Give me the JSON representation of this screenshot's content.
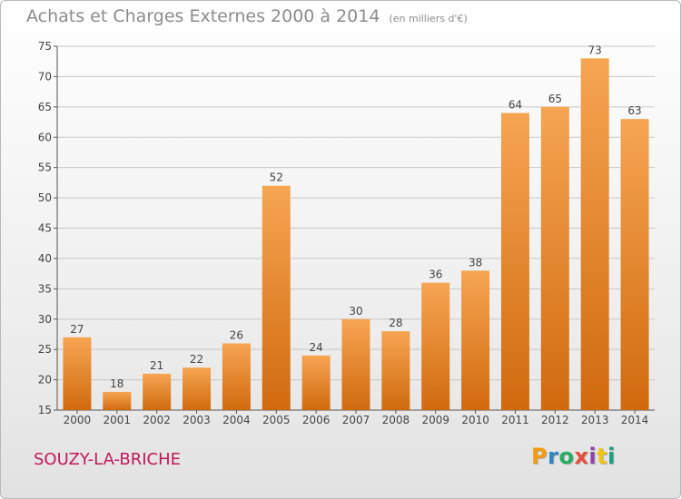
{
  "header": {
    "title": "Achats et Charges Externes 2000 à 2014",
    "unit_note": "(en milliers d'€)"
  },
  "footer": {
    "commune": "SOUZY-LA-BRICHE",
    "logo_text": "Proxiti",
    "logo_colors": [
      "#f39c12",
      "#2e86c1",
      "#27ae60",
      "#e74c3c",
      "#8e44ad",
      "#f1c40f",
      "#16a085"
    ]
  },
  "colors": {
    "bar_light": "#f6a552",
    "bar_dark": "#d06a0e",
    "grid": "#c8c8c8",
    "axis_text": "#444444",
    "title": "#8c8c8c",
    "commune": "#c2185b"
  },
  "chart_data": {
    "type": "bar",
    "categories": [
      "2000",
      "2001",
      "2002",
      "2003",
      "2004",
      "2005",
      "2006",
      "2007",
      "2008",
      "2009",
      "2010",
      "2011",
      "2012",
      "2013",
      "2014"
    ],
    "values": [
      27,
      18,
      21,
      22,
      26,
      52,
      24,
      30,
      28,
      36,
      38,
      64,
      65,
      73,
      63
    ],
    "data_labels": [
      "27",
      "18",
      "21",
      "22",
      "26",
      "52",
      "24",
      "30",
      "28",
      "36",
      "38",
      "64",
      "65",
      "73",
      "63"
    ],
    "title": "Achats et Charges Externes 2000 à 2014",
    "xlabel": "",
    "ylabel": "",
    "ylim": [
      15,
      75
    ],
    "yticks": [
      15,
      20,
      25,
      30,
      35,
      40,
      45,
      50,
      55,
      60,
      65,
      70,
      75
    ],
    "grid": true,
    "legend": "none"
  }
}
